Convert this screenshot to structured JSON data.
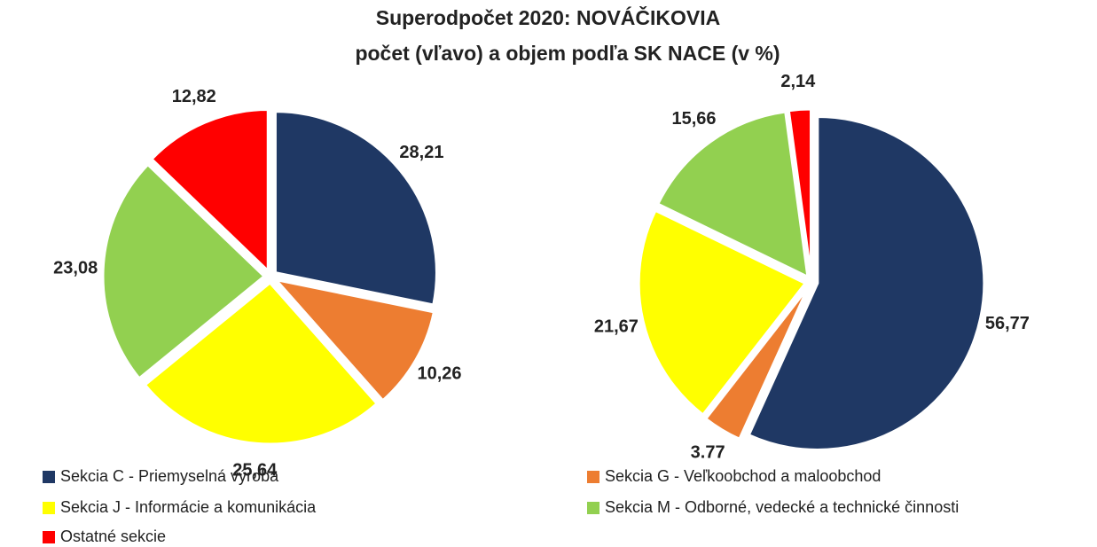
{
  "title": "Superodpočet 2020:  NOVÁČIKOVIA",
  "subtitle": "počet (vľavo) a objem podľa SK NACE  (v %)",
  "chart_data": [
    {
      "type": "pie",
      "categories": [
        "Sekcia C - Priemyselná výroba",
        "Sekcia G - Veľkoobchod a maloobchod",
        "Sekcia J - Informácie a komunikácia",
        "Sekcia M - Odborné, vedecké a technické činnosti",
        "Ostatné sekcie"
      ],
      "colors": [
        "#1f3864",
        "#ed7d31",
        "#ffff00",
        "#92d050",
        "#ff0000"
      ],
      "values": [
        28.21,
        10.26,
        25.64,
        23.08,
        12.82
      ],
      "value_labels": [
        "28,21",
        "10,26",
        "25,64",
        "23,08",
        "12,82"
      ]
    },
    {
      "type": "pie",
      "values": [
        56.77,
        3.77,
        21.67,
        15.66,
        2.14
      ],
      "value_labels": [
        "56,77",
        "3.77",
        "21,67",
        "15,66",
        "2,14"
      ]
    }
  ]
}
